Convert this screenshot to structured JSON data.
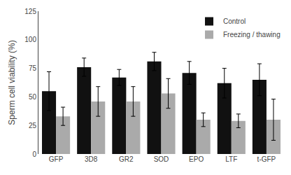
{
  "chart_data": {
    "type": "bar",
    "categories": [
      "GFP",
      "3D8",
      "GR2",
      "SOD",
      "EPO",
      "LTF",
      "t-GFP"
    ],
    "series": [
      {
        "name": "Control",
        "color": "#111111",
        "values": [
          55,
          76,
          67,
          81,
          71,
          62,
          65
        ],
        "errors": [
          17,
          8,
          7,
          8,
          10,
          13,
          14
        ]
      },
      {
        "name": "Freezing / thawing",
        "color": "#aaaaaa",
        "values": [
          33,
          46,
          46,
          53,
          30,
          29,
          30
        ],
        "errors": [
          8,
          13,
          13,
          13,
          6,
          6,
          18
        ]
      }
    ],
    "ylabel": "Sperm cell viability (%)",
    "ylim": [
      0,
      125
    ],
    "yticks": [
      0,
      25,
      50,
      75,
      100,
      125
    ],
    "legend": "upper right",
    "grid": false
  }
}
